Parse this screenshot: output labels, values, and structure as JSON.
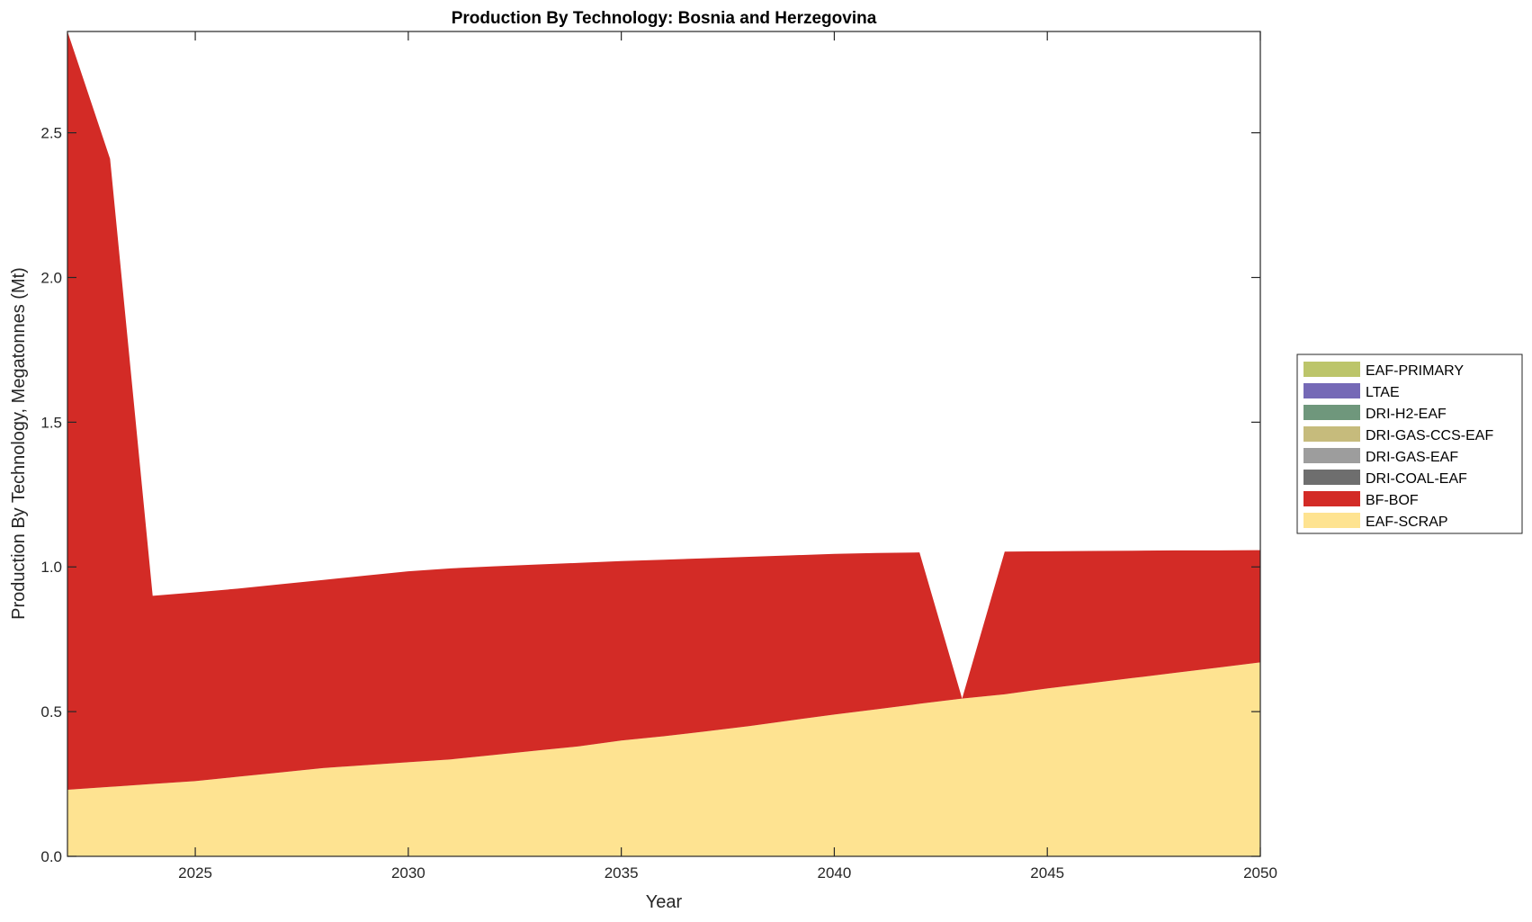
{
  "chart_data": {
    "type": "area",
    "stacked": true,
    "title": "Production By Technology: Bosnia and Herzegovina",
    "xlabel": "Year",
    "ylabel": "Production By Technology, Megatonnes (Mt)",
    "xlim": [
      2022,
      2050
    ],
    "ylim": [
      0,
      2.85
    ],
    "xticks": [
      2025,
      2030,
      2035,
      2040,
      2045,
      2050
    ],
    "yticks": [
      0,
      0.5,
      1,
      1.5,
      2,
      2.5
    ],
    "ytick_labels": [
      "0.0",
      "0.5",
      "1.0",
      "1.5",
      "2.0",
      "2.5"
    ],
    "grid": false,
    "legend_position": "outside-right",
    "x": [
      2022,
      2023,
      2024,
      2025,
      2026,
      2027,
      2028,
      2029,
      2030,
      2031,
      2032,
      2033,
      2034,
      2035,
      2036,
      2037,
      2038,
      2039,
      2040,
      2041,
      2042,
      2043,
      2044,
      2045,
      2046,
      2047,
      2048,
      2049,
      2050
    ],
    "series": [
      {
        "name": "EAF-SCRAP",
        "color": "#fee391",
        "values": [
          0.23,
          0.24,
          0.25,
          0.26,
          0.275,
          0.29,
          0.305,
          0.315,
          0.325,
          0.335,
          0.35,
          0.365,
          0.38,
          0.4,
          0.415,
          0.432,
          0.45,
          0.47,
          0.49,
          0.508,
          0.527,
          0.545,
          0.56,
          0.58,
          0.598,
          0.616,
          0.634,
          0.652,
          0.67
        ]
      },
      {
        "name": "BF-BOF",
        "color": "#d32b26",
        "values": [
          2.62,
          2.17,
          0.65,
          0.652,
          0.65,
          0.65,
          0.65,
          0.655,
          0.66,
          0.66,
          0.652,
          0.643,
          0.634,
          0.62,
          0.61,
          0.598,
          0.585,
          0.57,
          0.555,
          0.54,
          0.523,
          0.0,
          0.493,
          0.474,
          0.457,
          0.44,
          0.423,
          0.405,
          0.388
        ]
      },
      {
        "name": "DRI-COAL-EAF",
        "color": "#6e6e6e",
        "values": [
          0,
          0,
          0,
          0,
          0,
          0,
          0,
          0,
          0,
          0,
          0,
          0,
          0,
          0,
          0,
          0,
          0,
          0,
          0,
          0,
          0,
          0,
          0,
          0,
          0,
          0,
          0,
          0,
          0
        ]
      },
      {
        "name": "DRI-GAS-EAF",
        "color": "#9d9d9d",
        "values": [
          0,
          0,
          0,
          0,
          0,
          0,
          0,
          0,
          0,
          0,
          0,
          0,
          0,
          0,
          0,
          0,
          0,
          0,
          0,
          0,
          0,
          0,
          0,
          0,
          0,
          0,
          0,
          0,
          0
        ]
      },
      {
        "name": "DRI-GAS-CCS-EAF",
        "color": "#c6bb7c",
        "values": [
          0,
          0,
          0,
          0,
          0,
          0,
          0,
          0,
          0,
          0,
          0,
          0,
          0,
          0,
          0,
          0,
          0,
          0,
          0,
          0,
          0,
          0,
          0,
          0,
          0,
          0,
          0,
          0,
          0
        ]
      },
      {
        "name": "DRI-H2-EAF",
        "color": "#6f977c",
        "values": [
          0,
          0,
          0,
          0,
          0,
          0,
          0,
          0,
          0,
          0,
          0,
          0,
          0,
          0,
          0,
          0,
          0,
          0,
          0,
          0,
          0,
          0,
          0,
          0,
          0,
          0,
          0,
          0,
          0
        ]
      },
      {
        "name": "LTAE",
        "color": "#7569b6",
        "values": [
          0,
          0,
          0,
          0,
          0,
          0,
          0,
          0,
          0,
          0,
          0,
          0,
          0,
          0,
          0,
          0,
          0,
          0,
          0,
          0,
          0,
          0,
          0,
          0,
          0,
          0,
          0,
          0,
          0
        ]
      },
      {
        "name": "EAF-PRIMARY",
        "color": "#bcc56a",
        "values": [
          0,
          0,
          0,
          0,
          0,
          0,
          0,
          0,
          0,
          0,
          0,
          0,
          0,
          0,
          0,
          0,
          0,
          0,
          0,
          0,
          0,
          0,
          0,
          0,
          0,
          0,
          0,
          0,
          0
        ]
      }
    ],
    "legend_order": [
      "EAF-PRIMARY",
      "LTAE",
      "DRI-H2-EAF",
      "DRI-GAS-CCS-EAF",
      "DRI-GAS-EAF",
      "DRI-COAL-EAF",
      "BF-BOF",
      "EAF-SCRAP"
    ]
  }
}
